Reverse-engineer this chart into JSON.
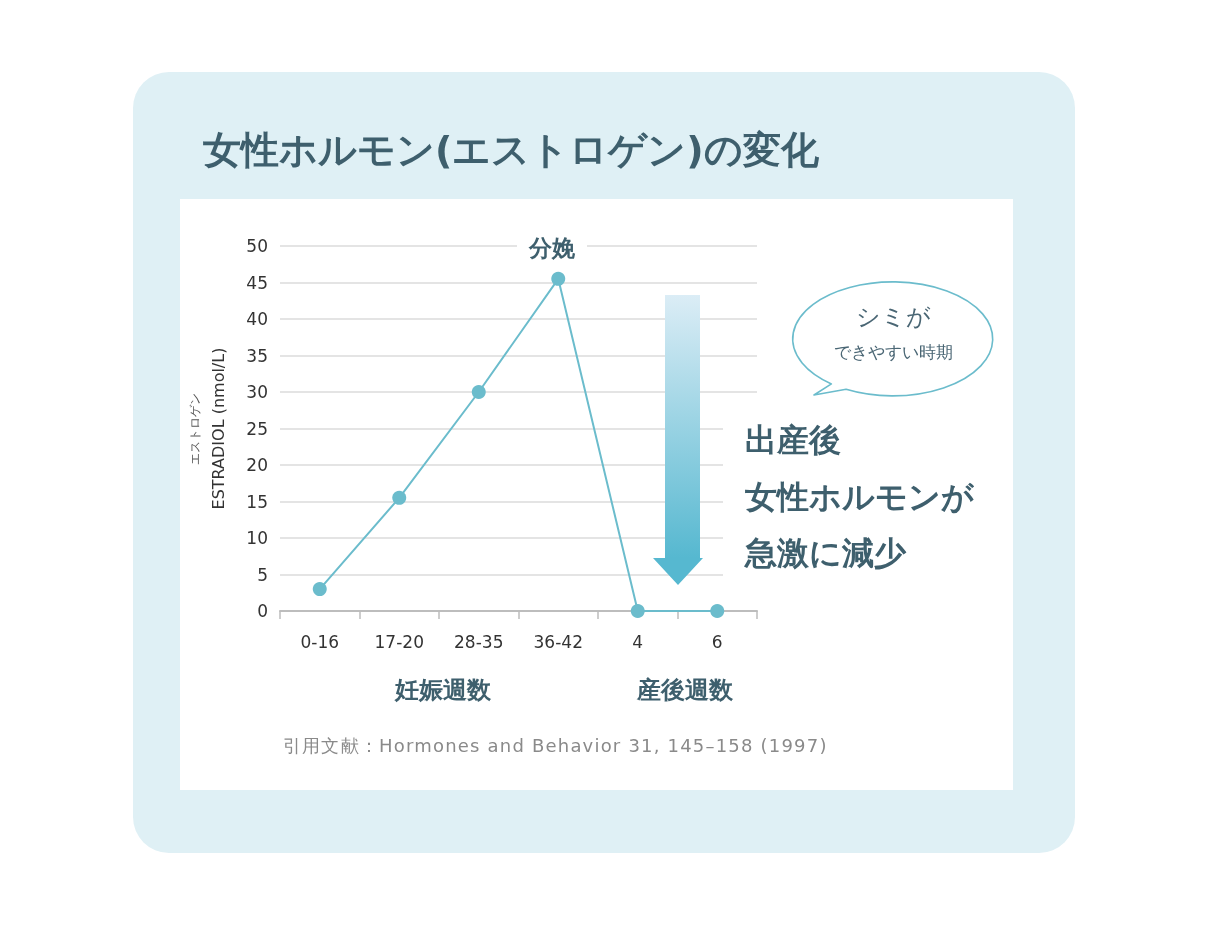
{
  "chart_data": {
    "type": "line",
    "title": "女性ホルモン(エストロゲン)の変化",
    "ylabel": "エストロゲン\nESTRADIOL (nmol/L)",
    "categories": [
      "0-16",
      "17-20",
      "28-35",
      "36-42",
      "4",
      "6"
    ],
    "values": [
      3,
      15.5,
      30,
      45.5,
      0,
      0
    ],
    "color": "#6bbccc",
    "ylim": [
      0,
      50
    ],
    "yticks": [
      0,
      5,
      10,
      15,
      20,
      25,
      30,
      35,
      40,
      45,
      50
    ],
    "grid": "y",
    "marker": "circle",
    "line_style": "solid",
    "annotations": [
      "分娩",
      "妊娠週数",
      "産後週数",
      "シミが",
      "できやすい時期",
      "出産後",
      "女性ホルモンが",
      "急激に減少",
      "引用文献：Hormones and Behavior 31, 145–158 (1997)"
    ]
  }
}
